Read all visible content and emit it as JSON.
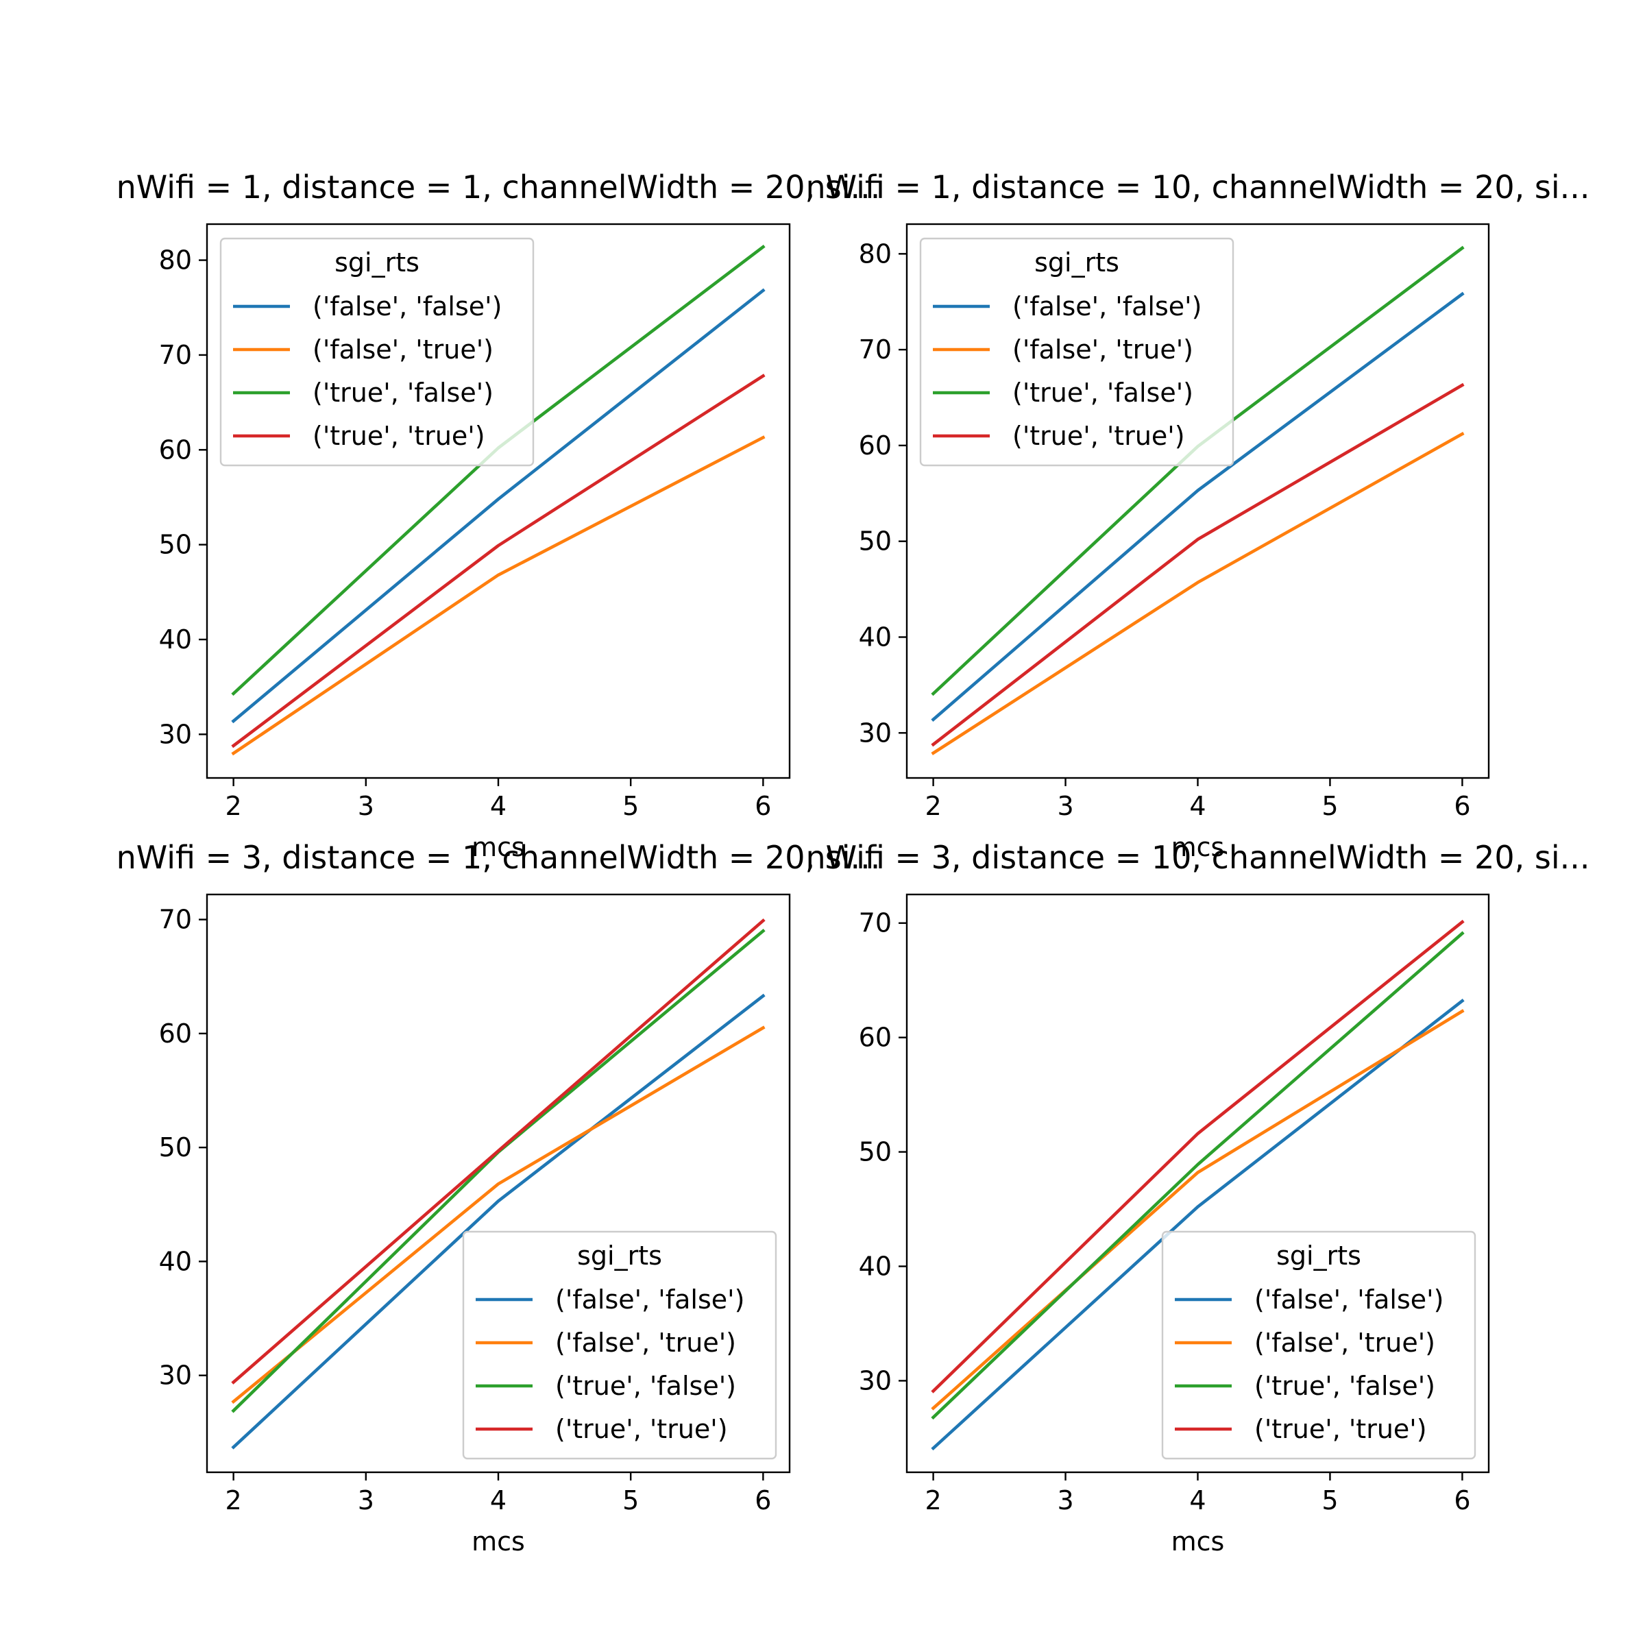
{
  "figure": {
    "background": "#ffffff"
  },
  "colors": {
    "false-false": "#1f77b4",
    "false-true": "#ff7f0e",
    "true-false": "#2ca02c",
    "true-true": "#d62728"
  },
  "chart_data": [
    {
      "type": "line",
      "title": "nWifi = 1, distance = 1, channelWidth = 20, si...",
      "xlabel": "mcs",
      "ylabel": "",
      "x": [
        2,
        4,
        6
      ],
      "xlim": [
        1.8,
        6.2
      ],
      "ylim": [
        25.4,
        83.8
      ],
      "xticks": [
        2,
        3,
        4,
        5,
        6
      ],
      "yticks": [
        30,
        40,
        50,
        60,
        70,
        80
      ],
      "grid": false,
      "legend": {
        "title": "sgi_rts",
        "placement": "upper-left"
      },
      "series": [
        {
          "name": "('false', 'false')",
          "color": "#1f77b4",
          "values": [
            31.4,
            54.8,
            76.8
          ]
        },
        {
          "name": "('false', 'true')",
          "color": "#ff7f0e",
          "values": [
            28.0,
            46.8,
            61.3
          ]
        },
        {
          "name": "('true', 'false')",
          "color": "#2ca02c",
          "values": [
            34.3,
            60.2,
            81.4
          ]
        },
        {
          "name": "('true', 'true')",
          "color": "#d62728",
          "values": [
            28.8,
            49.9,
            67.8
          ]
        }
      ]
    },
    {
      "type": "line",
      "title": "nWifi = 1, distance = 10, channelWidth = 20, si...",
      "xlabel": "mcs",
      "ylabel": "",
      "x": [
        2,
        4,
        6
      ],
      "xlim": [
        1.8,
        6.2
      ],
      "ylim": [
        25.3,
        83.1
      ],
      "xticks": [
        2,
        3,
        4,
        5,
        6
      ],
      "yticks": [
        30,
        40,
        50,
        60,
        70,
        80
      ],
      "grid": false,
      "legend": {
        "title": "sgi_rts",
        "placement": "upper-left"
      },
      "series": [
        {
          "name": "('false', 'false')",
          "color": "#1f77b4",
          "values": [
            31.4,
            55.3,
            75.8
          ]
        },
        {
          "name": "('false', 'true')",
          "color": "#ff7f0e",
          "values": [
            27.9,
            45.7,
            61.2
          ]
        },
        {
          "name": "('true', 'false')",
          "color": "#2ca02c",
          "values": [
            34.1,
            59.9,
            80.6
          ]
        },
        {
          "name": "('true', 'true')",
          "color": "#d62728",
          "values": [
            28.8,
            50.2,
            66.3
          ]
        }
      ]
    },
    {
      "type": "line",
      "title": "nWifi = 3, distance = 1, channelWidth = 20, si...",
      "xlabel": "mcs",
      "ylabel": "",
      "x": [
        2,
        4,
        6
      ],
      "xlim": [
        1.8,
        6.2
      ],
      "ylim": [
        21.5,
        72.2
      ],
      "xticks": [
        2,
        3,
        4,
        5,
        6
      ],
      "yticks": [
        30,
        40,
        50,
        60,
        70
      ],
      "grid": false,
      "legend": {
        "title": "sgi_rts",
        "placement": "lower-right"
      },
      "series": [
        {
          "name": "('false', 'false')",
          "color": "#1f77b4",
          "values": [
            23.7,
            45.3,
            63.3
          ]
        },
        {
          "name": "('false', 'true')",
          "color": "#ff7f0e",
          "values": [
            27.7,
            46.8,
            60.5
          ]
        },
        {
          "name": "('true', 'false')",
          "color": "#2ca02c",
          "values": [
            26.9,
            49.6,
            69.0
          ]
        },
        {
          "name": "('true', 'true')",
          "color": "#d62728",
          "values": [
            29.4,
            49.7,
            69.9
          ]
        }
      ]
    },
    {
      "type": "line",
      "title": "nWifi = 3, distance = 10, channelWidth = 20, si...",
      "xlabel": "mcs",
      "ylabel": "",
      "x": [
        2,
        4,
        6
      ],
      "xlim": [
        1.8,
        6.2
      ],
      "ylim": [
        22.0,
        72.5
      ],
      "xticks": [
        2,
        3,
        4,
        5,
        6
      ],
      "yticks": [
        30,
        40,
        50,
        60,
        70
      ],
      "grid": false,
      "legend": {
        "title": "sgi_rts",
        "placement": "lower-right"
      },
      "series": [
        {
          "name": "('false', 'false')",
          "color": "#1f77b4",
          "values": [
            24.1,
            45.2,
            63.2
          ]
        },
        {
          "name": "('false', 'true')",
          "color": "#ff7f0e",
          "values": [
            27.6,
            48.2,
            62.3
          ]
        },
        {
          "name": "('true', 'false')",
          "color": "#2ca02c",
          "values": [
            26.8,
            48.9,
            69.1
          ]
        },
        {
          "name": "('true', 'true')",
          "color": "#d62728",
          "values": [
            29.1,
            51.6,
            70.1
          ]
        }
      ]
    }
  ]
}
